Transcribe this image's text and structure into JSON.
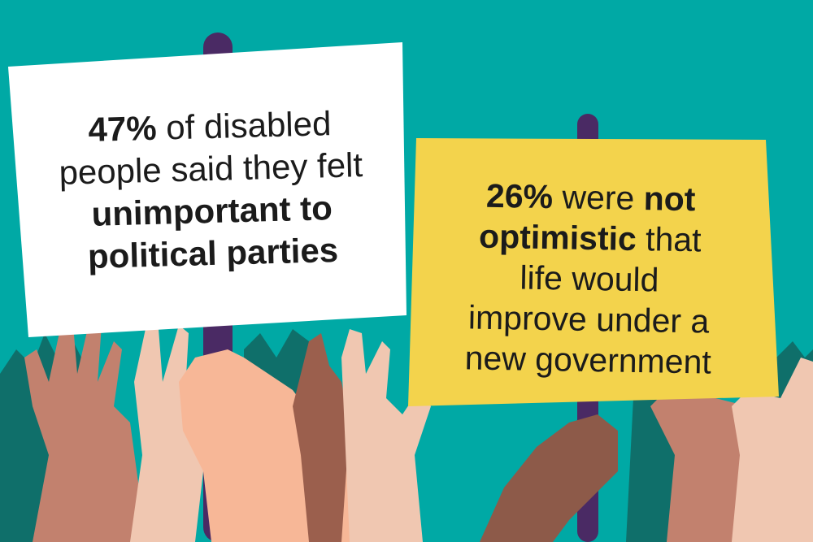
{
  "colors": {
    "background": "#00a9a5",
    "hand_dark_teal": "#0f6f6a",
    "pole": "#4a2a64",
    "white_sign": "#ffffff",
    "yellow_sign": "#f3d34c",
    "text": "#1b1b1b"
  },
  "white_sign": {
    "line1_bold": "47%",
    "line1_rest": " of disabled",
    "line2": "people said they felt",
    "line3": "unimportant to",
    "line4": "political parties"
  },
  "yellow_sign": {
    "line1_bold_a": "26%",
    "line1_mid": " were ",
    "line1_bold_b": "not",
    "line2_bold": "optimistic",
    "line2_rest": " that",
    "line3": "life would",
    "line4": "improve under a",
    "line5": "new government"
  },
  "icons": [
    "raised-hands-illustration",
    "placard-pole"
  ]
}
